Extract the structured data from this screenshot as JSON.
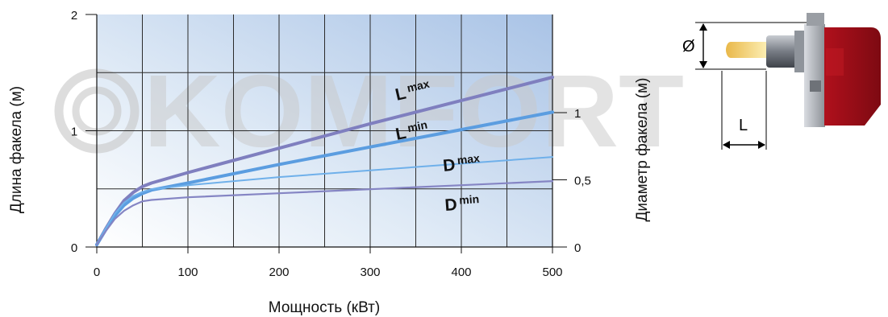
{
  "watermark": "KOMFORT",
  "chart_data": {
    "type": "line",
    "xlabel": "Мощность (кВт)",
    "ylabel": "Длина факела (м)",
    "y2label": "Диаметр факела (м)",
    "xlim": [
      0,
      500
    ],
    "ylim": [
      0,
      2
    ],
    "y2lim": [
      0,
      1.73
    ],
    "x_ticks": [
      "0",
      "100",
      "200",
      "300",
      "400",
      "500"
    ],
    "y_ticks": [
      "0",
      "1",
      "2"
    ],
    "y2_ticks": [
      "0",
      "0,5",
      "1"
    ],
    "grid": true,
    "series": [
      {
        "name": "L",
        "sub": "max",
        "axis": "left",
        "color": "#7f7fbf",
        "width": 4,
        "x": [
          0,
          10,
          20,
          30,
          40,
          50,
          60,
          100,
          200,
          300,
          400,
          500
        ],
        "y": [
          0.02,
          0.16,
          0.29,
          0.4,
          0.47,
          0.52,
          0.55,
          0.64,
          0.85,
          1.06,
          1.26,
          1.46
        ]
      },
      {
        "name": "L",
        "sub": "min",
        "axis": "left",
        "color": "#5b9de0",
        "width": 4,
        "x": [
          0,
          10,
          20,
          30,
          40,
          50,
          60,
          100,
          200,
          300,
          400,
          500
        ],
        "y": [
          0.02,
          0.15,
          0.27,
          0.36,
          0.42,
          0.46,
          0.49,
          0.55,
          0.71,
          0.86,
          1.01,
          1.16
        ]
      },
      {
        "name": "D",
        "sub": "max",
        "axis": "right",
        "color": "#6fb0ea",
        "width": 2,
        "x": [
          0,
          10,
          20,
          30,
          40,
          50,
          60,
          100,
          200,
          300,
          400,
          500
        ],
        "y": [
          0.02,
          0.14,
          0.25,
          0.33,
          0.38,
          0.41,
          0.43,
          0.46,
          0.52,
          0.57,
          0.62,
          0.67
        ]
      },
      {
        "name": "D",
        "sub": "min",
        "axis": "right",
        "color": "#8585c4",
        "width": 2.2,
        "x": [
          0,
          10,
          20,
          30,
          40,
          50,
          60,
          100,
          200,
          300,
          400,
          500
        ],
        "y": [
          0.02,
          0.12,
          0.21,
          0.27,
          0.31,
          0.34,
          0.35,
          0.37,
          0.4,
          0.43,
          0.46,
          0.49
        ]
      }
    ]
  },
  "diagram": {
    "diameter_label": "Ø",
    "length_label": "L"
  }
}
